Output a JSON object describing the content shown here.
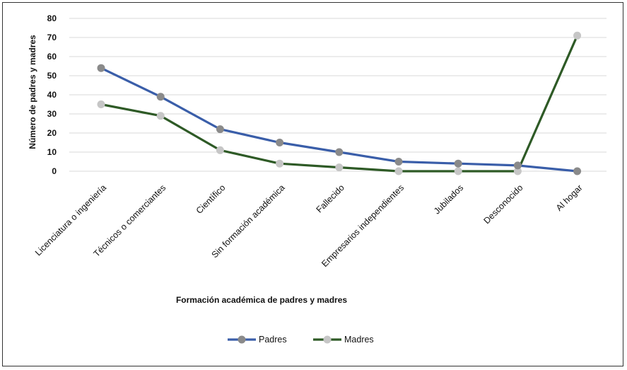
{
  "chart_data": {
    "type": "line",
    "categories": [
      "Licenciatura o ingeniería",
      "Técnicos o comerciantes",
      "Científico",
      "Sin formación académica",
      "Fallecido",
      "Empresarios independientes",
      "Jubilados",
      "Desconocido",
      "Al hogar"
    ],
    "series": [
      {
        "name": "Padres",
        "values": [
          54,
          39,
          22,
          15,
          10,
          5,
          4,
          3,
          0
        ],
        "line_color": "#3a5ea9",
        "marker_color": "#8a8a8a"
      },
      {
        "name": "Madres",
        "values": [
          35,
          29,
          11,
          4,
          2,
          0,
          0,
          0,
          71
        ],
        "line_color": "#2e5a26",
        "marker_color": "#c6c6c6"
      }
    ],
    "title": "",
    "xlabel": "Formación académica de padres y madres",
    "ylabel": "Número de padres y madres",
    "ylim": [
      0,
      80
    ],
    "yticks": [
      0,
      10,
      20,
      30,
      40,
      50,
      60,
      70,
      80
    ],
    "grid": true,
    "legend_position": "bottom"
  }
}
